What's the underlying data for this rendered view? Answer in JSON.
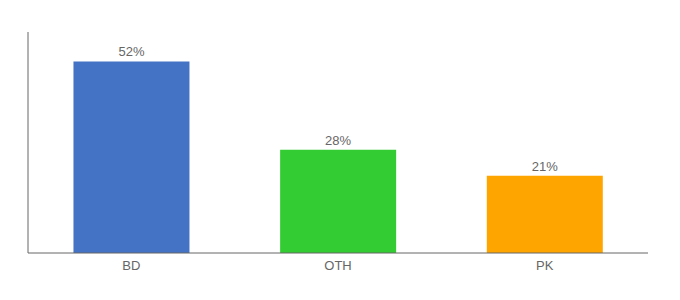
{
  "chart_data": {
    "type": "bar",
    "categories": [
      "BD",
      "OTH",
      "PK"
    ],
    "values": [
      52,
      28,
      21
    ],
    "value_labels": [
      "52%",
      "28%",
      "21%"
    ],
    "colors": [
      "#4472C4",
      "#33CC33",
      "#FFA500"
    ],
    "ylim": [
      0,
      60
    ],
    "data_labels": true,
    "tick_labels": "x",
    "grid": false
  }
}
